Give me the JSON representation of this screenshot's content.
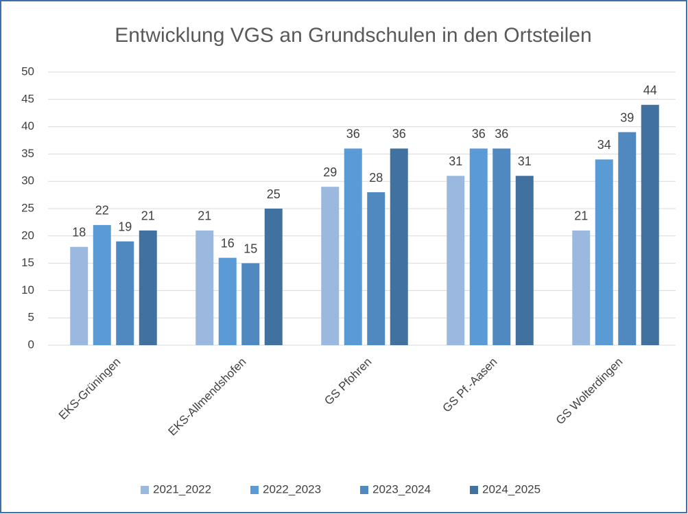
{
  "chart_data": {
    "type": "bar",
    "title": "Entwicklung VGS an Grundschulen in den Ortsteilen",
    "categories": [
      "EKS-Grüningen",
      "EKS-Allmendshofen",
      "GS Pfohren",
      "GS Pf.-Aasen",
      "GS Wolterdingen"
    ],
    "series": [
      {
        "name": "2021_2022",
        "color": "#9bb9df",
        "values": [
          18,
          21,
          29,
          31,
          21
        ]
      },
      {
        "name": "2022_2023",
        "color": "#5b9bd5",
        "values": [
          22,
          16,
          36,
          36,
          34
        ]
      },
      {
        "name": "2023_2024",
        "color": "#4f89c0",
        "values": [
          19,
          15,
          28,
          36,
          39
        ]
      },
      {
        "name": "2024_2025",
        "color": "#41719f",
        "values": [
          21,
          25,
          36,
          31,
          44
        ]
      }
    ],
    "ylim": [
      0,
      50
    ],
    "yticks": [
      0,
      5,
      10,
      15,
      20,
      25,
      30,
      35,
      40,
      45,
      50
    ],
    "grid": true,
    "legend": "bottom"
  }
}
